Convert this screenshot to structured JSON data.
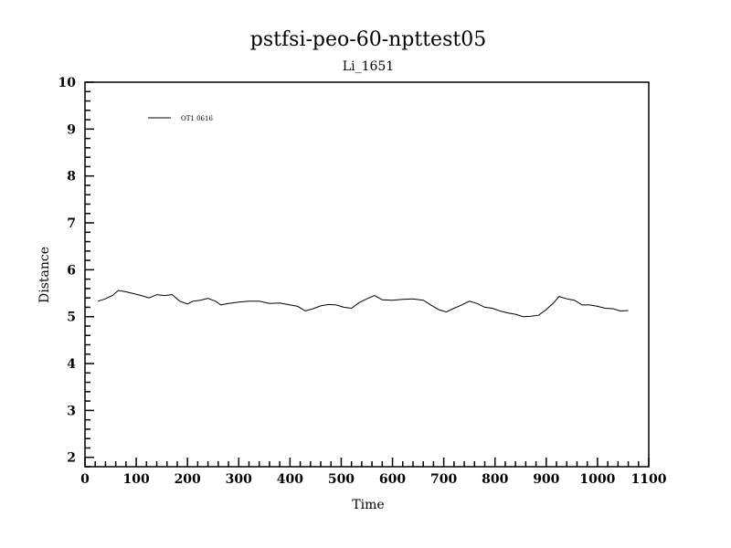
{
  "chart_data": {
    "type": "line",
    "title": "pstfsi-peo-60-npttest05",
    "subtitle": "Li_1651",
    "xlabel": "Time",
    "ylabel": "Distance",
    "xlim": [
      0,
      1100
    ],
    "ylim": [
      1.8,
      10
    ],
    "x_ticks": [
      "0",
      "100",
      "200",
      "300",
      "400",
      "500",
      "600",
      "700",
      "800",
      "900",
      "1000",
      "1100"
    ],
    "y_ticks": [
      "2",
      "3",
      "4",
      "5",
      "6",
      "7",
      "8",
      "9",
      "10"
    ],
    "grid": false,
    "legend_position": "top-left",
    "series": [
      {
        "name": "OT1 0616",
        "color": "#000000",
        "x": [
          25,
          40,
          55,
          65,
          80,
          95,
          110,
          125,
          140,
          155,
          170,
          185,
          200,
          210,
          225,
          240,
          255,
          265,
          280,
          300,
          320,
          340,
          360,
          380,
          400,
          415,
          430,
          445,
          460,
          475,
          490,
          505,
          520,
          535,
          550,
          565,
          580,
          600,
          620,
          640,
          660,
          675,
          690,
          705,
          720,
          735,
          750,
          765,
          780,
          795,
          810,
          825,
          840,
          855,
          870,
          885,
          900,
          915,
          925,
          940,
          955,
          970,
          985,
          1000,
          1015,
          1030,
          1045,
          1060
        ],
        "y": [
          5.33,
          5.38,
          5.46,
          5.56,
          5.53,
          5.49,
          5.45,
          5.4,
          5.47,
          5.45,
          5.47,
          5.33,
          5.27,
          5.33,
          5.35,
          5.39,
          5.33,
          5.25,
          5.28,
          5.31,
          5.33,
          5.33,
          5.28,
          5.29,
          5.25,
          5.22,
          5.12,
          5.17,
          5.23,
          5.26,
          5.25,
          5.2,
          5.18,
          5.3,
          5.38,
          5.45,
          5.36,
          5.35,
          5.37,
          5.38,
          5.35,
          5.25,
          5.15,
          5.1,
          5.18,
          5.25,
          5.33,
          5.28,
          5.2,
          5.18,
          5.12,
          5.08,
          5.05,
          5.0,
          5.01,
          5.03,
          5.15,
          5.3,
          5.43,
          5.38,
          5.35,
          5.25,
          5.25,
          5.22,
          5.18,
          5.17,
          5.12,
          5.13
        ]
      }
    ]
  }
}
